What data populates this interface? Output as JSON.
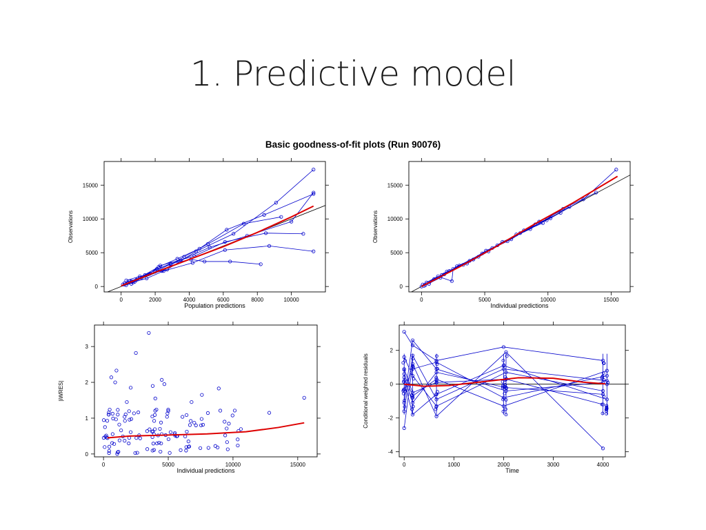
{
  "slide": {
    "title": "1. Predictive model"
  },
  "figure": {
    "title": "Basic goodness-of-fit plots (Run 90076)"
  },
  "colors": {
    "points": "#0000cc",
    "smooth": "#dd0000",
    "identity": "#000000",
    "axis": "#000000"
  },
  "chart_data": [
    {
      "type": "scatter",
      "id": "pred-obs",
      "xlabel": "Population predictions",
      "ylabel": "Observations",
      "xlim": [
        -1000,
        12000
      ],
      "ylim": [
        -800,
        18500
      ],
      "xticks": [
        0,
        2000,
        4000,
        6000,
        8000,
        10000
      ],
      "yticks": [
        0,
        5000,
        10000,
        15000
      ],
      "reference": "identity",
      "grid": false,
      "connected": true,
      "series": [
        {
          "x": [
            200,
            600,
            1100,
            2000,
            2900
          ],
          "y": [
            300,
            800,
            1300,
            2200,
            3300
          ]
        },
        {
          "x": [
            400,
            900,
            1700,
            2700,
            4400,
            6600,
            9100,
            11300
          ],
          "y": [
            600,
            1000,
            1900,
            2500,
            5200,
            7800,
            12400,
            17300
          ]
        },
        {
          "x": [
            300,
            800,
            1500,
            2500,
            4200,
            6100,
            8700,
            11300
          ],
          "y": [
            200,
            700,
            1200,
            2300,
            3500,
            5400,
            6000,
            5200
          ]
        },
        {
          "x": [
            500,
            1200,
            2100,
            3500,
            5200,
            7400,
            10000,
            11300
          ],
          "y": [
            800,
            1300,
            2600,
            3900,
            5800,
            7500,
            9600,
            13900
          ]
        },
        {
          "x": [
            100,
            700,
            1600,
            2300,
            4300,
            6100,
            8500,
            10700
          ],
          "y": [
            300,
            600,
            1800,
            3100,
            4500,
            6600,
            7900,
            7800
          ]
        },
        {
          "x": [
            600,
            1400,
            2900,
            4100,
            4900,
            6400,
            8200
          ],
          "y": [
            400,
            1700,
            3400,
            4000,
            3700,
            3700,
            3300
          ]
        },
        {
          "x": [
            200,
            1000,
            2200,
            3300,
            4600,
            6200,
            8400,
            11300
          ],
          "y": [
            500,
            1200,
            2900,
            4100,
            5600,
            8400,
            10600,
            13700
          ]
        },
        {
          "x": [
            300,
            1100,
            2400,
            3700,
            5100,
            7200,
            9400
          ],
          "y": [
            900,
            1500,
            2300,
            4400,
            6300,
            9300,
            10300
          ]
        }
      ],
      "smooth": {
        "x": [
          0,
          2000,
          4000,
          6000,
          8000,
          10000,
          11300
        ],
        "y": [
          100,
          2100,
          4000,
          5900,
          8000,
          10300,
          11900
        ]
      }
    },
    {
      "type": "scatter",
      "id": "ipred-obs",
      "xlabel": "Individual predictions",
      "ylabel": "Observations",
      "xlim": [
        -1000,
        16500
      ],
      "ylim": [
        -800,
        18500
      ],
      "xticks": [
        0,
        5000,
        10000,
        15000
      ],
      "yticks": [
        0,
        5000,
        10000,
        15000
      ],
      "reference": "identity",
      "grid": false,
      "connected": true,
      "series": [
        {
          "x": [
            0,
            1000,
            2200,
            3800,
            5600,
            7800,
            10200,
            12800,
            15400
          ],
          "y": [
            0,
            1100,
            2300,
            3800,
            5700,
            7900,
            10100,
            12900,
            17300
          ]
        },
        {
          "x": [
            200,
            1500,
            2800,
            4500,
            6400,
            8600,
            11200,
            13800
          ],
          "y": [
            100,
            1300,
            3000,
            4400,
            6600,
            8500,
            11500,
            13900
          ]
        },
        {
          "x": [
            100,
            1300,
            2400,
            2500,
            4100,
            6000,
            8100,
            9900
          ],
          "y": [
            300,
            1500,
            800,
            2600,
            4000,
            6100,
            8300,
            9800
          ]
        },
        {
          "x": [
            400,
            1800,
            3300,
            5100,
            7100,
            9300,
            11700
          ],
          "y": [
            600,
            1800,
            3200,
            5300,
            7000,
            9600,
            11800
          ]
        },
        {
          "x": [
            300,
            2000,
            3600,
            5300,
            7500,
            9600
          ],
          "y": [
            200,
            2200,
            3400,
            5200,
            7700,
            9400
          ]
        },
        {
          "x": [
            600,
            1600,
            3000,
            4800,
            6800,
            9000,
            11000
          ],
          "y": [
            400,
            1700,
            3100,
            4900,
            6700,
            9200,
            10900
          ]
        }
      ],
      "smooth": {
        "x": [
          0,
          3000,
          6000,
          9000,
          12000,
          15500
        ],
        "y": [
          0,
          2900,
          6000,
          9300,
          12400,
          16300
        ]
      }
    },
    {
      "type": "scatter",
      "id": "ipred-iwres",
      "xlabel": "Individual predictions",
      "ylabel": "|iWRES|",
      "xlim": [
        -700,
        16500
      ],
      "ylim": [
        -0.08,
        3.6
      ],
      "xticks": [
        0,
        5000,
        10000,
        15000
      ],
      "yticks": [
        0,
        1,
        2,
        3
      ],
      "reference": "none",
      "grid": false,
      "connected": false,
      "series": [
        {
          "x": [
            3500,
            2500,
            1000,
            4500,
            600,
            4700,
            900,
            3800,
            2100,
            8900,
            7600,
            15500,
            12800,
            1800,
            4000,
            6800,
            1100,
            5000
          ],
          "y": [
            3.38,
            2.82,
            2.33,
            2.07,
            2.14,
            1.95,
            2.0,
            1.9,
            1.85,
            1.83,
            1.65,
            1.57,
            1.15,
            1.45,
            1.55,
            1.45,
            1.1,
            1.2
          ]
        }
      ],
      "scatter_fill": {
        "x_range": [
          0,
          11000
        ],
        "y_range": [
          0,
          1.25
        ],
        "n": 118
      },
      "smooth": {
        "x": [
          300,
          2000,
          5000,
          8000,
          11000,
          13500,
          15500
        ],
        "y": [
          0.45,
          0.5,
          0.53,
          0.56,
          0.62,
          0.74,
          0.87
        ]
      }
    },
    {
      "type": "scatter",
      "id": "time-cwres",
      "xlabel": "Time",
      "ylabel": "Conditional weighted residuals",
      "xlim": [
        -100,
        4450
      ],
      "ylim": [
        -4.3,
        3.5
      ],
      "xticks": [
        0,
        1000,
        2000,
        3000,
        4000
      ],
      "yticks": [
        -4,
        -2,
        0,
        2
      ],
      "reference": "zero",
      "grid": false,
      "connected": true,
      "clusters": [
        0,
        170,
        650,
        2000,
        2050,
        4000,
        4080
      ],
      "series": [
        {
          "x": [
            0,
            170,
            650,
            2000,
            4000
          ],
          "y": [
            3.1,
            2.3,
            1.4,
            2.2,
            1.4
          ]
        },
        {
          "x": [
            0,
            170,
            650,
            2050,
            4000
          ],
          "y": [
            -2.6,
            1.2,
            -1.9,
            1.9,
            -3.8
          ]
        },
        {
          "x": [
            0,
            170,
            650,
            2000,
            4080
          ],
          "y": [
            0.6,
            -0.7,
            0.3,
            -1.3,
            0.8
          ]
        },
        {
          "x": [
            0,
            170,
            650,
            2050,
            4000
          ],
          "y": [
            -1.1,
            2.6,
            0.9,
            -0.4,
            0.1
          ]
        },
        {
          "x": [
            0,
            170,
            650,
            2000,
            4080
          ],
          "y": [
            0.2,
            -1.8,
            -0.6,
            1.1,
            -0.9
          ]
        },
        {
          "x": [
            0,
            170,
            650,
            2050,
            4000
          ],
          "y": [
            1.6,
            0.5,
            -1.3,
            0.7,
            -0.4
          ]
        },
        {
          "x": [
            0,
            170,
            650,
            2000,
            4080
          ],
          "y": [
            -0.3,
            0.9,
            1.3,
            -0.8,
            0.5
          ]
        },
        {
          "x": [
            0,
            170,
            650,
            2050,
            4000
          ],
          "y": [
            0.9,
            -0.5,
            0.1,
            0.3,
            -1.2
          ]
        },
        {
          "x": [
            0,
            170,
            650,
            2000,
            4080
          ],
          "y": [
            -1.6,
            1.7,
            -0.9,
            0.9,
            0.2
          ]
        },
        {
          "x": [
            0,
            170,
            650,
            2050,
            4000
          ],
          "y": [
            0.4,
            -1.1,
            0.7,
            -0.2,
            -0.6
          ]
        }
      ],
      "smooth": {
        "x": [
          0,
          400,
          900,
          1600,
          2300,
          3000,
          3600,
          4050
        ],
        "y": [
          0.0,
          -0.12,
          -0.08,
          0.15,
          0.38,
          0.35,
          0.12,
          0.02
        ]
      }
    }
  ]
}
